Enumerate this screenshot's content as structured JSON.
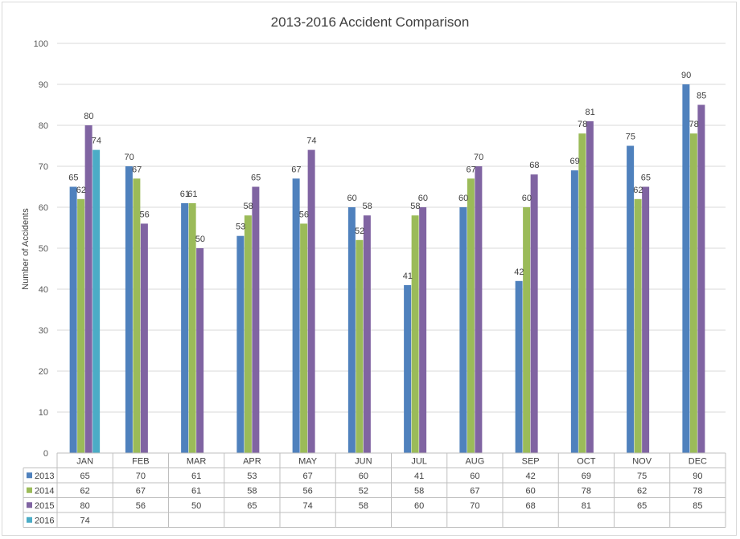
{
  "chart_data": {
    "type": "bar",
    "title": "2013-2016 Accident Comparison",
    "ylabel": "Number of Accidents",
    "xlabel": "",
    "ylim": [
      0,
      100
    ],
    "yticks": [
      0,
      10,
      20,
      30,
      40,
      50,
      60,
      70,
      80,
      90,
      100
    ],
    "grid": true,
    "legend": "data-table",
    "categories": [
      "JAN",
      "FEB",
      "MAR",
      "APR",
      "MAY",
      "JUN",
      "JUL",
      "AUG",
      "SEP",
      "OCT",
      "NOV",
      "DEC"
    ],
    "series": [
      {
        "name": "2013",
        "color": "#4f81bd",
        "values": [
          65,
          70,
          61,
          53,
          67,
          60,
          41,
          60,
          42,
          69,
          75,
          90
        ]
      },
      {
        "name": "2014",
        "color": "#9bbb59",
        "values": [
          62,
          67,
          61,
          58,
          56,
          52,
          58,
          67,
          60,
          78,
          62,
          78
        ]
      },
      {
        "name": "2015",
        "color": "#8064a2",
        "values": [
          80,
          56,
          50,
          65,
          74,
          58,
          60,
          70,
          68,
          81,
          65,
          85
        ]
      },
      {
        "name": "2016",
        "color": "#4bacc6",
        "values": [
          74,
          null,
          null,
          null,
          null,
          null,
          null,
          null,
          null,
          null,
          null,
          null
        ]
      }
    ]
  }
}
